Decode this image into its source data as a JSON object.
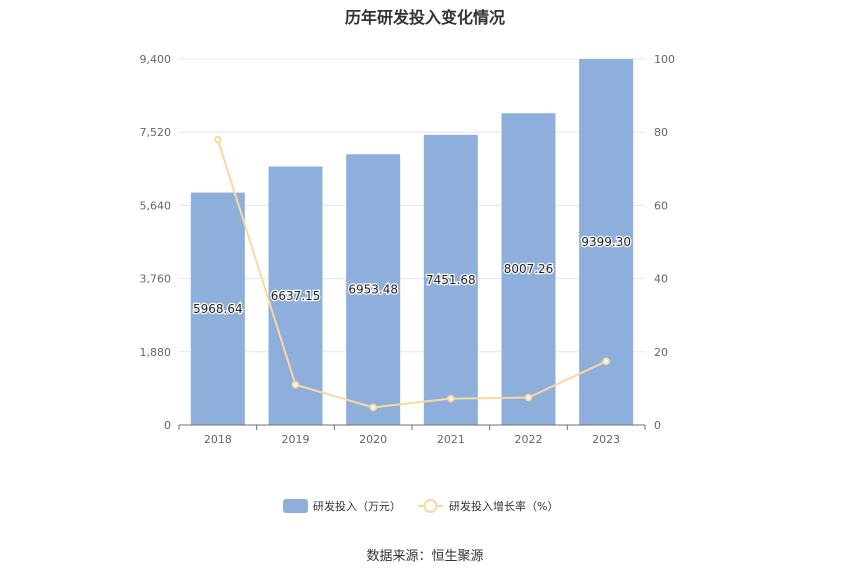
{
  "chart_data": {
    "type": "bar",
    "title": "历年研发投入变化情况",
    "categories": [
      "2018",
      "2019",
      "2020",
      "2021",
      "2022",
      "2023"
    ],
    "series": [
      {
        "name": "研发投入（万元）",
        "type": "bar",
        "axis": "left",
        "color": "#8eaedb",
        "values": [
          5968.64,
          6637.15,
          6953.48,
          7451.68,
          8007.26,
          9399.3
        ],
        "labels": [
          "5968.64",
          "6637.15",
          "6953.48",
          "7451.68",
          "8007.26",
          "9399.30"
        ]
      },
      {
        "name": "研发投入增长率（%）",
        "type": "line",
        "axis": "right",
        "color": "#f9d9a0",
        "values": [
          78,
          11,
          4.8,
          7.2,
          7.5,
          17.4
        ]
      }
    ],
    "left_axis": {
      "ylim": [
        0,
        9400
      ],
      "ticks": [
        "0",
        "1,880",
        "3,760",
        "5,640",
        "7,520",
        "9,400"
      ]
    },
    "right_axis": {
      "ylim": [
        0,
        100
      ],
      "ticks": [
        "0",
        "20",
        "40",
        "60",
        "80",
        "100"
      ]
    },
    "grid": true,
    "legend": "bottom-center"
  },
  "source": "数据来源：恒生聚源"
}
